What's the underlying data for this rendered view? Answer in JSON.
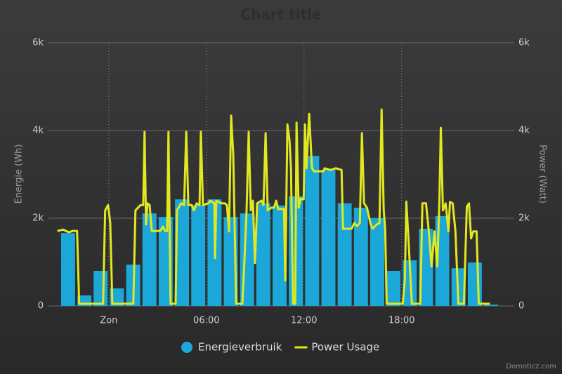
{
  "chart_data": {
    "type": "combo",
    "title": "Chart title",
    "y_label": "Energie (Wh)",
    "y2_label": "Power (Watt)",
    "watermark": "Domoticz.com",
    "xlim": [
      -3.75,
      24.75
    ],
    "xticks": [
      {
        "value": 0,
        "label": "Zon"
      },
      {
        "value": 6,
        "label": "06:00"
      },
      {
        "value": 12,
        "label": "12:00"
      },
      {
        "value": 18,
        "label": "18:00"
      }
    ],
    "ylim": [
      0,
      6000
    ],
    "yticks": [
      0,
      {
        "value": 2000,
        "label": "2k"
      },
      {
        "value": 4000,
        "label": "4k"
      },
      {
        "value": 6000,
        "label": "6k"
      }
    ],
    "y2lim": [
      0,
      6000
    ],
    "y2ticks": [
      0,
      {
        "value": 2000,
        "label": "2k"
      },
      {
        "value": 4000,
        "label": "4k"
      },
      {
        "value": 6000,
        "label": "6k"
      }
    ],
    "grid": true,
    "legend": "bottom",
    "series": [
      {
        "name": "Energieverbruik",
        "type": "bar",
        "color": "#1ba8d9",
        "x": [
          -2.5,
          -1.5,
          -0.5,
          0.5,
          1.5,
          2.5,
          3.5,
          4.5,
          5.5,
          6.5,
          7.5,
          8.5,
          9.5,
          10.5,
          11.5,
          12.5,
          13.5,
          14.5,
          15.5,
          16.5,
          17.5,
          18.5,
          19.5,
          20.5,
          21.5,
          22.5,
          23.5
        ],
        "values": [
          1660,
          240,
          800,
          400,
          940,
          2110,
          2030,
          2430,
          2300,
          2430,
          2030,
          2110,
          2340,
          2290,
          2500,
          3420,
          3100,
          2340,
          2240,
          2000,
          800,
          1040,
          1760,
          2050,
          860,
          990,
          30
        ]
      },
      {
        "name": "Power Usage",
        "type": "line",
        "color": "#e2e81f",
        "axis": "y2",
        "x": [
          -3.16,
          -2.81,
          -2.46,
          -2.2,
          -1.95,
          -1.82,
          -0.35,
          -0.22,
          -0.04,
          0.09,
          0.22,
          1.51,
          1.64,
          1.95,
          2.12,
          2.2,
          2.29,
          2.38,
          2.51,
          2.64,
          3.16,
          3.33,
          3.46,
          3.59,
          3.67,
          3.8,
          4.11,
          4.19,
          4.45,
          4.63,
          4.76,
          4.89,
          5.1,
          5.23,
          5.4,
          5.58,
          5.66,
          5.79,
          6.1,
          6.27,
          6.49,
          6.53,
          6.61,
          6.92,
          7.13,
          7.26,
          7.39,
          7.52,
          7.65,
          7.83,
          8.21,
          8.34,
          8.47,
          8.6,
          8.73,
          8.86,
          8.99,
          9.12,
          9.38,
          9.51,
          9.64,
          9.77,
          9.99,
          10.16,
          10.29,
          10.42,
          10.77,
          10.85,
          10.98,
          11.11,
          11.2,
          11.33,
          11.46,
          11.54,
          11.67,
          11.8,
          11.98,
          12.06,
          12.15,
          12.32,
          12.49,
          12.62,
          13.19,
          13.27,
          13.62,
          13.96,
          14.31,
          14.4,
          14.7,
          14.92,
          15.09,
          15.26,
          15.43,
          15.56,
          15.69,
          15.87,
          16.08,
          16.21,
          16.47,
          16.64,
          16.77,
          16.9,
          16.99,
          17.08,
          18.07,
          18.2,
          18.29,
          18.42,
          18.63,
          19.15,
          19.28,
          19.5,
          19.67,
          19.84,
          20.02,
          20.19,
          20.32,
          20.41,
          20.54,
          20.71,
          20.88,
          20.97,
          21.14,
          21.31,
          21.49,
          21.83,
          22.01,
          22.14,
          22.27,
          22.4,
          22.61,
          22.74,
          23.43
        ],
        "values": [
          1710,
          1740,
          1680,
          1710,
          1710,
          50,
          50,
          2180,
          2300,
          1900,
          50,
          50,
          2180,
          2300,
          2300,
          3970,
          1860,
          2340,
          2300,
          1710,
          1710,
          1810,
          1710,
          1710,
          3970,
          50,
          50,
          2180,
          2340,
          2300,
          3970,
          2300,
          2300,
          2180,
          2340,
          2300,
          3970,
          2300,
          2340,
          2400,
          2340,
          1090,
          2400,
          2340,
          2340,
          2300,
          1700,
          4340,
          3460,
          50,
          50,
          1060,
          2180,
          3970,
          2180,
          2400,
          980,
          2340,
          2400,
          2300,
          3940,
          2180,
          2240,
          2240,
          2400,
          2210,
          2210,
          580,
          4140,
          3780,
          3140,
          50,
          50,
          4180,
          2240,
          2450,
          2430,
          4140,
          3140,
          4380,
          3140,
          3070,
          3070,
          3140,
          3100,
          3140,
          3100,
          1760,
          1760,
          1760,
          1890,
          1820,
          1890,
          3940,
          2340,
          2240,
          1890,
          1760,
          1860,
          1890,
          4480,
          2180,
          1760,
          50,
          50,
          580,
          2380,
          1540,
          50,
          50,
          2340,
          2340,
          1700,
          900,
          1700,
          900,
          2340,
          4060,
          2180,
          2340,
          1700,
          2370,
          2340,
          1700,
          50,
          50,
          2260,
          2340,
          1540,
          1700,
          1700,
          50,
          50
        ]
      }
    ]
  }
}
